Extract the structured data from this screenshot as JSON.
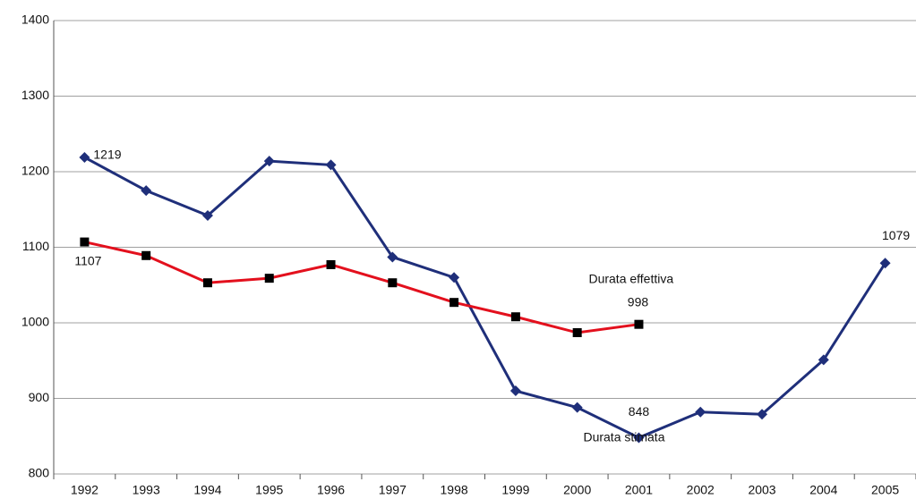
{
  "chart_data": {
    "type": "line",
    "categories": [
      "1992",
      "1993",
      "1994",
      "1995",
      "1996",
      "1997",
      "1998",
      "1999",
      "2000",
      "2001",
      "2002",
      "2003",
      "2004",
      "2005"
    ],
    "series": [
      {
        "name": "Durata stimata",
        "color": "#1f2f7a",
        "marker": "diamond",
        "values": [
          1219,
          1175,
          1142,
          1214,
          1209,
          1087,
          1060,
          910,
          888,
          848,
          882,
          879,
          951,
          1079
        ],
        "value_labels": [
          "1219",
          null,
          null,
          null,
          null,
          null,
          null,
          null,
          null,
          "848",
          null,
          null,
          null,
          "1079"
        ]
      },
      {
        "name": "Durata effettiva",
        "color": "#e3101d",
        "marker": "square",
        "values": [
          1107,
          1089,
          1053,
          1059,
          1077,
          1053,
          1027,
          1008,
          987,
          998,
          null,
          null,
          null,
          null
        ],
        "value_labels": [
          "1107",
          null,
          null,
          null,
          null,
          null,
          null,
          null,
          null,
          "998",
          null,
          null,
          null,
          null
        ]
      }
    ],
    "ylim": [
      800,
      1400
    ],
    "yticks": [
      800,
      900,
      1000,
      1100,
      1200,
      1300,
      1400
    ],
    "grid": true
  }
}
